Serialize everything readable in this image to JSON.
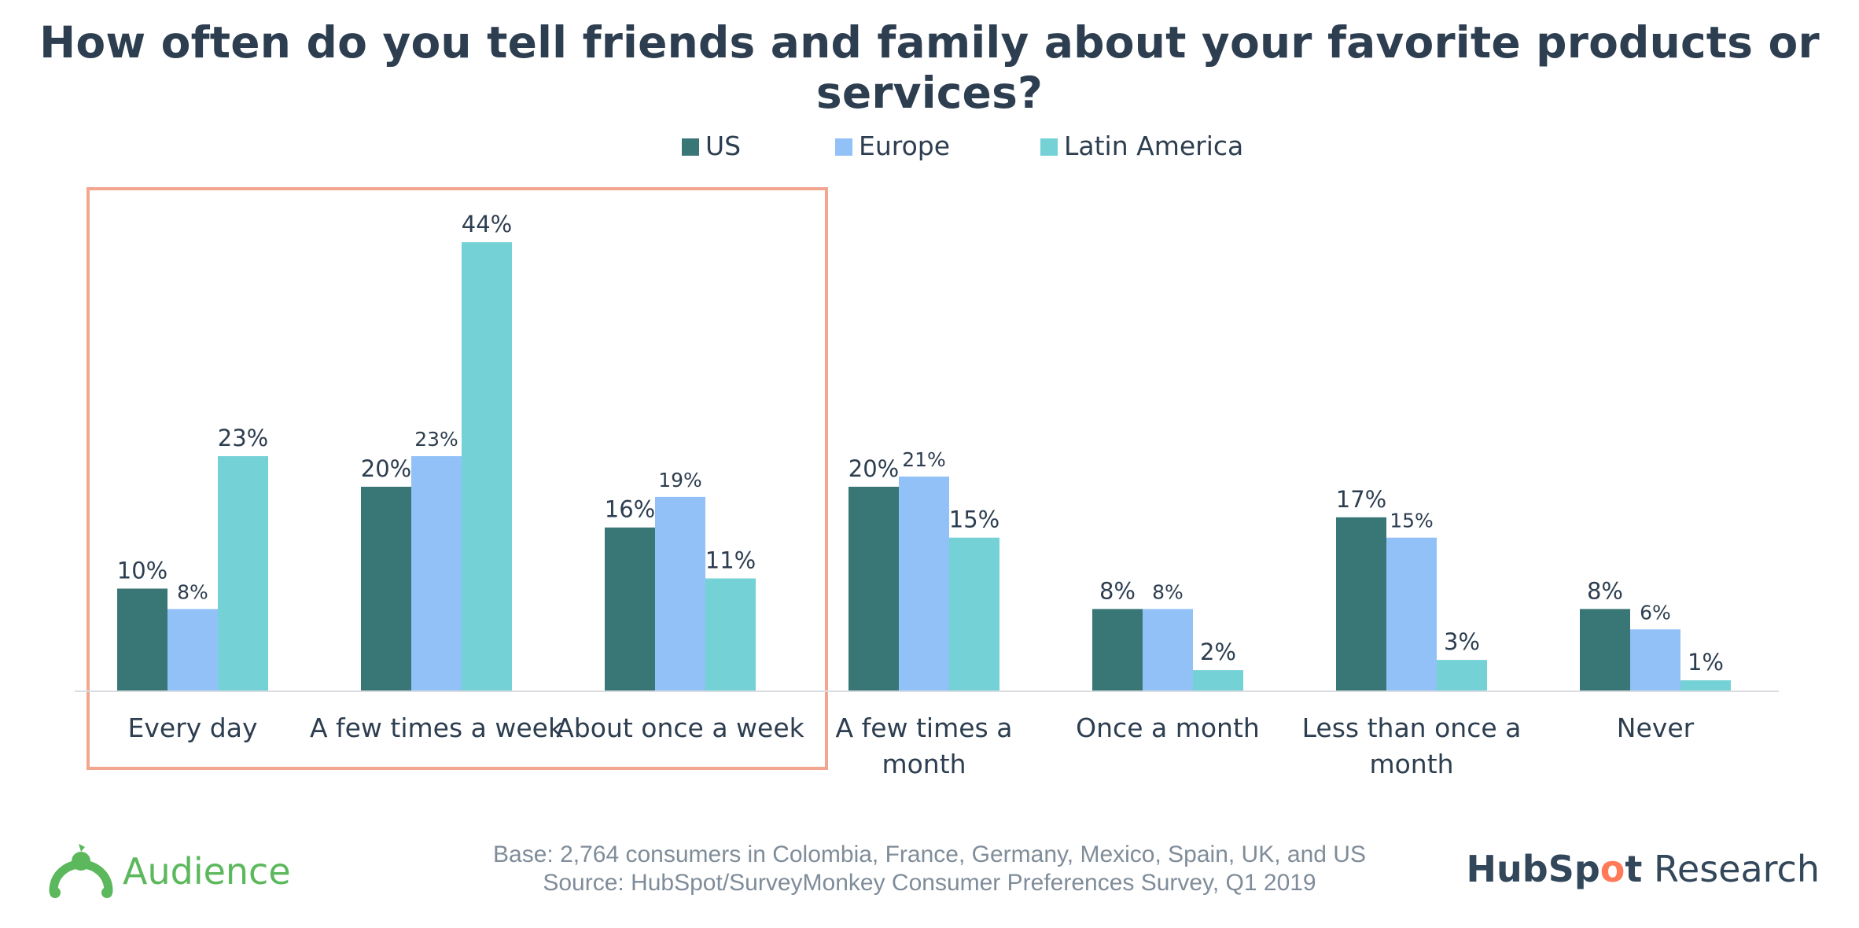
{
  "chart_data": {
    "type": "bar",
    "title": "How often do you tell friends and family about your favorite products or services?",
    "categories": [
      "Every day",
      "A few times a week",
      "About once a week",
      "A few times a month",
      "Once a month",
      "Less than once a month",
      "Never"
    ],
    "category_lines": [
      [
        "Every day"
      ],
      [
        "A few times a week"
      ],
      [
        "About once a week"
      ],
      [
        "A few times a",
        "month"
      ],
      [
        "Once a month"
      ],
      [
        "Less than once a",
        "month"
      ],
      [
        "Never"
      ]
    ],
    "series": [
      {
        "name": "US",
        "color": "#397676",
        "values": [
          10,
          20,
          16,
          20,
          8,
          17,
          8
        ],
        "labels": [
          "10%",
          "20%",
          "16%",
          "20%",
          "8%",
          "17%",
          "8%"
        ]
      },
      {
        "name": "Europe",
        "color": "#92c1f8",
        "values": [
          8,
          23,
          19,
          21,
          8,
          15,
          6
        ],
        "labels": [
          "8%",
          "23%",
          "19%",
          "21%",
          "8%",
          "15%",
          "6%"
        ]
      },
      {
        "name": "Latin America",
        "color": "#74d1d6",
        "values": [
          23,
          44,
          11,
          15,
          2,
          3,
          1
        ],
        "labels": [
          "23%",
          "44%",
          "11%",
          "15%",
          "2%",
          "3%",
          "1%"
        ]
      }
    ],
    "ylim": [
      0,
      44
    ],
    "grid": false,
    "legend_position": "top-center",
    "highlight": {
      "categories": [
        "Every day",
        "A few times a week",
        "About once a week"
      ],
      "color": "#f2a68f"
    }
  },
  "footer": {
    "base": "Base: 2,764 consumers in Colombia, France, Germany, Mexico, Spain, UK, and US",
    "source": "Source: HubSpot/SurveyMonkey Consumer Preferences Survey, Q1 2019"
  },
  "logos": {
    "audience": {
      "text": "Audience",
      "color": "#5cb85c",
      "icon": "audience-icon"
    },
    "hubspot": {
      "brand_start": "HubSp",
      "brand_sprocket": "o",
      "brand_end": "t",
      "suffix": " Research",
      "icon": "hubspot-sprocket-icon"
    }
  }
}
